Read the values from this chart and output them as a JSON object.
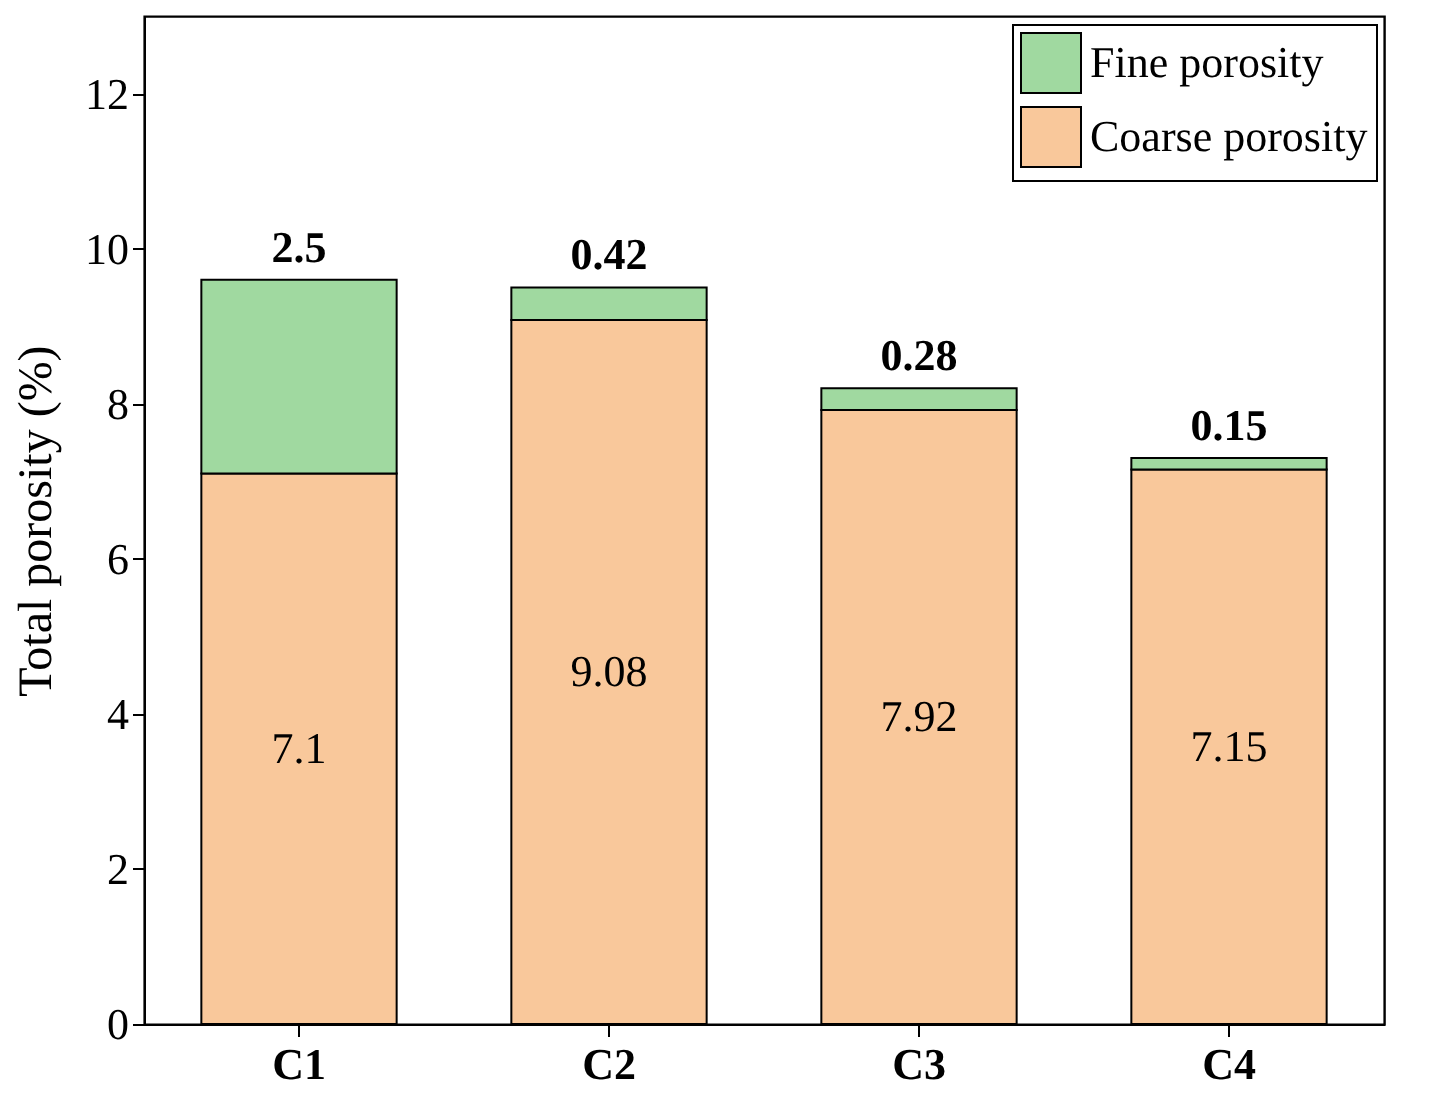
{
  "chart_data": {
    "type": "bar",
    "ylabel": "Total porosity (%)",
    "categories": [
      "C1",
      "C2",
      "C3",
      "C4"
    ],
    "series": [
      {
        "name": "Coarse porosity",
        "color": "#f9c89b",
        "values": [
          7.1,
          9.08,
          7.92,
          7.15
        ]
      },
      {
        "name": "Fine porosity",
        "color": "#a0d9a0",
        "values": [
          2.5,
          0.42,
          0.28,
          0.15
        ]
      }
    ],
    "stacked": true,
    "data_labels": true,
    "legend": "top right",
    "grid": false,
    "ylim": [
      0,
      13
    ],
    "yticks": [
      0,
      2,
      4,
      6,
      8,
      10,
      12
    ]
  }
}
